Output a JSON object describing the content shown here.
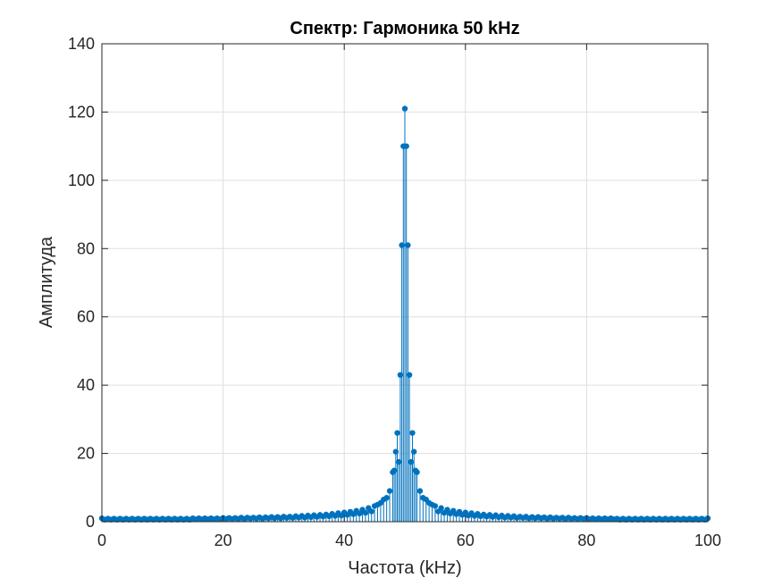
{
  "chart_data": {
    "type": "stem",
    "title": "Спектр: Гармоника 50 kHz",
    "xlabel": "Частота (kHz)",
    "ylabel": "Амплитуда",
    "xlim": [
      0,
      100
    ],
    "ylim": [
      0,
      140
    ],
    "xticks": [
      0,
      20,
      40,
      60,
      80,
      100
    ],
    "yticks": [
      0,
      20,
      40,
      60,
      80,
      100,
      120,
      140
    ],
    "xtick_labels": [
      "0",
      "20",
      "40",
      "60",
      "80",
      "100"
    ],
    "ytick_labels": [
      "0",
      "20",
      "40",
      "60",
      "80",
      "100",
      "120",
      "140"
    ],
    "grid": true,
    "series": [
      {
        "color": "#0072BD",
        "points": [
          {
            "x": 0,
            "y": 1.0
          },
          {
            "x": 0.5,
            "y": 0.6
          },
          {
            "x": 1,
            "y": 0.9
          },
          {
            "x": 1.5,
            "y": 0.6
          },
          {
            "x": 2,
            "y": 0.9
          },
          {
            "x": 2.5,
            "y": 0.6
          },
          {
            "x": 3,
            "y": 0.9
          },
          {
            "x": 3.5,
            "y": 0.6
          },
          {
            "x": 4,
            "y": 0.9
          },
          {
            "x": 4.5,
            "y": 0.6
          },
          {
            "x": 5,
            "y": 0.9
          },
          {
            "x": 5.5,
            "y": 0.6
          },
          {
            "x": 6,
            "y": 0.9
          },
          {
            "x": 6.5,
            "y": 0.6
          },
          {
            "x": 7,
            "y": 0.9
          },
          {
            "x": 7.5,
            "y": 0.6
          },
          {
            "x": 8,
            "y": 0.9
          },
          {
            "x": 8.5,
            "y": 0.6
          },
          {
            "x": 9,
            "y": 0.9
          },
          {
            "x": 9.5,
            "y": 0.6
          },
          {
            "x": 10,
            "y": 0.9
          },
          {
            "x": 10.5,
            "y": 0.6
          },
          {
            "x": 11,
            "y": 0.9
          },
          {
            "x": 11.5,
            "y": 0.6
          },
          {
            "x": 12,
            "y": 0.9
          },
          {
            "x": 12.5,
            "y": 0.6
          },
          {
            "x": 13,
            "y": 0.9
          },
          {
            "x": 13.5,
            "y": 0.6
          },
          {
            "x": 14,
            "y": 0.9
          },
          {
            "x": 14.5,
            "y": 0.6
          },
          {
            "x": 15,
            "y": 1.0
          },
          {
            "x": 15.5,
            "y": 0.7
          },
          {
            "x": 16,
            "y": 1.0
          },
          {
            "x": 16.5,
            "y": 0.7
          },
          {
            "x": 17,
            "y": 1.0
          },
          {
            "x": 17.5,
            "y": 0.7
          },
          {
            "x": 18,
            "y": 1.0
          },
          {
            "x": 18.5,
            "y": 0.7
          },
          {
            "x": 19,
            "y": 1.0
          },
          {
            "x": 19.5,
            "y": 0.7
          },
          {
            "x": 20,
            "y": 1.1
          },
          {
            "x": 20.5,
            "y": 0.8
          },
          {
            "x": 21,
            "y": 1.1
          },
          {
            "x": 21.5,
            "y": 0.8
          },
          {
            "x": 22,
            "y": 1.1
          },
          {
            "x": 22.5,
            "y": 0.8
          },
          {
            "x": 23,
            "y": 1.2
          },
          {
            "x": 23.5,
            "y": 0.8
          },
          {
            "x": 24,
            "y": 1.2
          },
          {
            "x": 24.5,
            "y": 0.9
          },
          {
            "x": 25,
            "y": 1.2
          },
          {
            "x": 25.5,
            "y": 0.9
          },
          {
            "x": 26,
            "y": 1.3
          },
          {
            "x": 26.5,
            "y": 0.9
          },
          {
            "x": 27,
            "y": 1.3
          },
          {
            "x": 27.5,
            "y": 1.0
          },
          {
            "x": 28,
            "y": 1.4
          },
          {
            "x": 28.5,
            "y": 1.0
          },
          {
            "x": 29,
            "y": 1.4
          },
          {
            "x": 29.5,
            "y": 1.0
          },
          {
            "x": 30,
            "y": 1.5
          },
          {
            "x": 30.5,
            "y": 1.1
          },
          {
            "x": 31,
            "y": 1.5
          },
          {
            "x": 31.5,
            "y": 1.1
          },
          {
            "x": 32,
            "y": 1.6
          },
          {
            "x": 32.5,
            "y": 1.2
          },
          {
            "x": 33,
            "y": 1.7
          },
          {
            "x": 33.5,
            "y": 1.2
          },
          {
            "x": 34,
            "y": 1.8
          },
          {
            "x": 34.5,
            "y": 1.3
          },
          {
            "x": 35,
            "y": 1.9
          },
          {
            "x": 35.5,
            "y": 1.4
          },
          {
            "x": 36,
            "y": 2.0
          },
          {
            "x": 36.5,
            "y": 1.5
          },
          {
            "x": 37,
            "y": 2.1
          },
          {
            "x": 37.5,
            "y": 1.6
          },
          {
            "x": 38,
            "y": 2.3
          },
          {
            "x": 38.5,
            "y": 1.7
          },
          {
            "x": 39,
            "y": 2.5
          },
          {
            "x": 39.5,
            "y": 1.8
          },
          {
            "x": 40,
            "y": 2.7
          },
          {
            "x": 40.5,
            "y": 2.0
          },
          {
            "x": 41,
            "y": 2.9
          },
          {
            "x": 41.5,
            "y": 2.2
          },
          {
            "x": 42,
            "y": 3.2
          },
          {
            "x": 42.5,
            "y": 2.4
          },
          {
            "x": 43,
            "y": 3.5
          },
          {
            "x": 43.5,
            "y": 2.6
          },
          {
            "x": 44,
            "y": 4.0
          },
          {
            "x": 44.5,
            "y": 3.0
          },
          {
            "x": 45,
            "y": 4.6
          },
          {
            "x": 45.5,
            "y": 5.0
          },
          {
            "x": 46,
            "y": 5.5
          },
          {
            "x": 46.5,
            "y": 6.5
          },
          {
            "x": 47,
            "y": 7.0
          },
          {
            "x": 47.5,
            "y": 9.0
          },
          {
            "x": 48,
            "y": 14.5
          },
          {
            "x": 48.25,
            "y": 15.0
          },
          {
            "x": 48.5,
            "y": 20.5
          },
          {
            "x": 48.75,
            "y": 26.0
          },
          {
            "x": 49,
            "y": 17.5
          },
          {
            "x": 49.25,
            "y": 43.0
          },
          {
            "x": 49.5,
            "y": 81.0
          },
          {
            "x": 49.75,
            "y": 110.0
          },
          {
            "x": 50,
            "y": 121.0
          },
          {
            "x": 50.25,
            "y": 110.0
          },
          {
            "x": 50.5,
            "y": 81.0
          },
          {
            "x": 50.75,
            "y": 43.0
          },
          {
            "x": 51,
            "y": 17.5
          },
          {
            "x": 51.25,
            "y": 26.0
          },
          {
            "x": 51.5,
            "y": 20.5
          },
          {
            "x": 51.75,
            "y": 15.0
          },
          {
            "x": 52,
            "y": 14.5
          },
          {
            "x": 52.5,
            "y": 9.0
          },
          {
            "x": 53,
            "y": 7.0
          },
          {
            "x": 53.5,
            "y": 6.5
          },
          {
            "x": 54,
            "y": 5.5
          },
          {
            "x": 54.5,
            "y": 5.0
          },
          {
            "x": 55,
            "y": 4.6
          },
          {
            "x": 55.5,
            "y": 3.0
          },
          {
            "x": 56,
            "y": 4.0
          },
          {
            "x": 56.5,
            "y": 2.6
          },
          {
            "x": 57,
            "y": 3.5
          },
          {
            "x": 57.5,
            "y": 2.4
          },
          {
            "x": 58,
            "y": 3.2
          },
          {
            "x": 58.5,
            "y": 2.2
          },
          {
            "x": 59,
            "y": 2.9
          },
          {
            "x": 59.5,
            "y": 2.0
          },
          {
            "x": 60,
            "y": 2.7
          },
          {
            "x": 60.5,
            "y": 1.8
          },
          {
            "x": 61,
            "y": 2.5
          },
          {
            "x": 61.5,
            "y": 1.7
          },
          {
            "x": 62,
            "y": 2.3
          },
          {
            "x": 62.5,
            "y": 1.6
          },
          {
            "x": 63,
            "y": 2.1
          },
          {
            "x": 63.5,
            "y": 1.5
          },
          {
            "x": 64,
            "y": 2.0
          },
          {
            "x": 64.5,
            "y": 1.4
          },
          {
            "x": 65,
            "y": 1.9
          },
          {
            "x": 65.5,
            "y": 1.3
          },
          {
            "x": 66,
            "y": 1.8
          },
          {
            "x": 66.5,
            "y": 1.2
          },
          {
            "x": 67,
            "y": 1.7
          },
          {
            "x": 67.5,
            "y": 1.2
          },
          {
            "x": 68,
            "y": 1.6
          },
          {
            "x": 68.5,
            "y": 1.1
          },
          {
            "x": 69,
            "y": 1.5
          },
          {
            "x": 69.5,
            "y": 1.1
          },
          {
            "x": 70,
            "y": 1.5
          },
          {
            "x": 70.5,
            "y": 1.0
          },
          {
            "x": 71,
            "y": 1.4
          },
          {
            "x": 71.5,
            "y": 1.0
          },
          {
            "x": 72,
            "y": 1.4
          },
          {
            "x": 72.5,
            "y": 1.0
          },
          {
            "x": 73,
            "y": 1.3
          },
          {
            "x": 73.5,
            "y": 0.9
          },
          {
            "x": 74,
            "y": 1.3
          },
          {
            "x": 74.5,
            "y": 0.9
          },
          {
            "x": 75,
            "y": 1.2
          },
          {
            "x": 75.5,
            "y": 0.9
          },
          {
            "x": 76,
            "y": 1.2
          },
          {
            "x": 76.5,
            "y": 0.8
          },
          {
            "x": 77,
            "y": 1.2
          },
          {
            "x": 77.5,
            "y": 0.8
          },
          {
            "x": 78,
            "y": 1.1
          },
          {
            "x": 78.5,
            "y": 0.8
          },
          {
            "x": 79,
            "y": 1.1
          },
          {
            "x": 79.5,
            "y": 0.8
          },
          {
            "x": 80,
            "y": 1.1
          },
          {
            "x": 80.5,
            "y": 0.7
          },
          {
            "x": 81,
            "y": 1.0
          },
          {
            "x": 81.5,
            "y": 0.7
          },
          {
            "x": 82,
            "y": 1.0
          },
          {
            "x": 82.5,
            "y": 0.7
          },
          {
            "x": 83,
            "y": 1.0
          },
          {
            "x": 83.5,
            "y": 0.7
          },
          {
            "x": 84,
            "y": 1.0
          },
          {
            "x": 84.5,
            "y": 0.7
          },
          {
            "x": 85,
            "y": 0.9
          },
          {
            "x": 85.5,
            "y": 0.6
          },
          {
            "x": 86,
            "y": 0.9
          },
          {
            "x": 86.5,
            "y": 0.6
          },
          {
            "x": 87,
            "y": 0.9
          },
          {
            "x": 87.5,
            "y": 0.6
          },
          {
            "x": 88,
            "y": 0.9
          },
          {
            "x": 88.5,
            "y": 0.6
          },
          {
            "x": 89,
            "y": 0.9
          },
          {
            "x": 89.5,
            "y": 0.6
          },
          {
            "x": 90,
            "y": 0.9
          },
          {
            "x": 90.5,
            "y": 0.6
          },
          {
            "x": 91,
            "y": 0.9
          },
          {
            "x": 91.5,
            "y": 0.6
          },
          {
            "x": 92,
            "y": 0.9
          },
          {
            "x": 92.5,
            "y": 0.6
          },
          {
            "x": 93,
            "y": 0.9
          },
          {
            "x": 93.5,
            "y": 0.6
          },
          {
            "x": 94,
            "y": 0.9
          },
          {
            "x": 94.5,
            "y": 0.6
          },
          {
            "x": 95,
            "y": 0.9
          },
          {
            "x": 95.5,
            "y": 0.6
          },
          {
            "x": 96,
            "y": 0.9
          },
          {
            "x": 96.5,
            "y": 0.6
          },
          {
            "x": 97,
            "y": 0.9
          },
          {
            "x": 97.5,
            "y": 0.6
          },
          {
            "x": 98,
            "y": 0.9
          },
          {
            "x": 98.5,
            "y": 0.6
          },
          {
            "x": 99,
            "y": 0.9
          },
          {
            "x": 99.5,
            "y": 0.6
          },
          {
            "x": 100,
            "y": 1.0
          }
        ]
      }
    ]
  }
}
